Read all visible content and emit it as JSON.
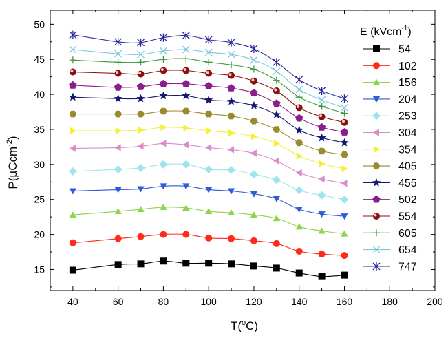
{
  "chart_data": {
    "type": "line",
    "xlabel_main": "T(",
    "xlabel_sup": "o",
    "xlabel_end": "C)",
    "ylabel_main": "P(µCcm",
    "ylabel_sup": "-2",
    "ylabel_end": ")",
    "xlim": [
      30,
      200
    ],
    "ylim": [
      12,
      52
    ],
    "xticks": [
      40,
      60,
      80,
      100,
      120,
      140,
      160,
      180,
      200
    ],
    "yticks": [
      15,
      20,
      25,
      30,
      35,
      40,
      45,
      50
    ],
    "legend_title_main": "E (kVcm",
    "legend_title_sup": "-1",
    "legend_title_end": ")",
    "legend_position": "right",
    "x": [
      40,
      60,
      70,
      80,
      90,
      100,
      110,
      120,
      130,
      140,
      150,
      160
    ],
    "series": [
      {
        "name": "54",
        "marker": "square",
        "color": "#000000",
        "values": [
          14.9,
          15.7,
          15.8,
          16.2,
          15.9,
          15.9,
          15.8,
          15.5,
          15.2,
          14.5,
          14.0,
          14.2
        ]
      },
      {
        "name": "102",
        "marker": "circle",
        "color": "#ff2a1a",
        "values": [
          18.8,
          19.4,
          19.7,
          20.0,
          20.0,
          19.5,
          19.4,
          19.1,
          18.7,
          17.6,
          17.2,
          17.0
        ]
      },
      {
        "name": "156",
        "marker": "triangle-up",
        "color": "#8cd44a",
        "values": [
          22.8,
          23.3,
          23.6,
          23.9,
          23.8,
          23.3,
          23.1,
          22.8,
          22.3,
          21.1,
          20.5,
          20.1
        ]
      },
      {
        "name": "204",
        "marker": "triangle-down",
        "color": "#2e5bd6",
        "values": [
          26.2,
          26.4,
          26.5,
          26.9,
          26.9,
          26.4,
          26.2,
          25.8,
          25.1,
          23.6,
          22.9,
          22.6
        ]
      },
      {
        "name": "253",
        "marker": "diamond",
        "color": "#9fe3ee",
        "values": [
          29.0,
          29.3,
          29.5,
          30.0,
          30.0,
          29.3,
          29.2,
          28.6,
          27.8,
          26.3,
          25.6,
          25.0
        ]
      },
      {
        "name": "304",
        "marker": "triangle-left",
        "color": "#d98cc8",
        "values": [
          32.3,
          32.4,
          32.6,
          33.0,
          32.8,
          32.4,
          32.1,
          31.6,
          30.5,
          28.8,
          27.9,
          27.3
        ]
      },
      {
        "name": "354",
        "marker": "triangle-right",
        "color": "#f2f03a",
        "values": [
          34.8,
          34.8,
          34.9,
          35.3,
          35.2,
          34.8,
          34.5,
          34.0,
          33.0,
          31.2,
          30.1,
          29.4
        ]
      },
      {
        "name": "405",
        "marker": "hexagon",
        "color": "#9a8a2e",
        "values": [
          37.2,
          37.2,
          37.2,
          37.6,
          37.6,
          37.2,
          36.9,
          36.2,
          35.0,
          33.1,
          31.9,
          31.4
        ]
      },
      {
        "name": "455",
        "marker": "star",
        "color": "#15186e",
        "values": [
          39.6,
          39.4,
          39.4,
          39.8,
          39.8,
          39.2,
          39.0,
          38.4,
          37.1,
          34.9,
          33.8,
          33.1
        ]
      },
      {
        "name": "502",
        "marker": "pentagon",
        "color": "#8a1e8a",
        "values": [
          41.3,
          41.0,
          41.1,
          41.5,
          41.5,
          41.2,
          40.9,
          40.2,
          38.7,
          36.6,
          35.3,
          34.6
        ]
      },
      {
        "name": "554",
        "marker": "circle-ball",
        "color": "#8a1010",
        "values": [
          43.2,
          43.0,
          42.9,
          43.4,
          43.4,
          43.0,
          42.7,
          41.9,
          40.5,
          38.1,
          36.8,
          36.0
        ]
      },
      {
        "name": "605",
        "marker": "plus",
        "color": "#3e9a3e",
        "values": [
          44.9,
          44.6,
          44.6,
          45.0,
          45.1,
          44.6,
          44.2,
          43.6,
          42.0,
          39.6,
          38.3,
          37.3
        ]
      },
      {
        "name": "654",
        "marker": "x",
        "color": "#7fc8dc",
        "values": [
          46.4,
          45.8,
          45.7,
          46.2,
          46.4,
          46.0,
          45.7,
          44.9,
          43.3,
          40.7,
          39.2,
          38.1
        ]
      },
      {
        "name": "747",
        "marker": "asterisk",
        "color": "#2a2aa0",
        "values": [
          48.5,
          47.5,
          47.4,
          48.1,
          48.4,
          47.8,
          47.4,
          46.5,
          44.6,
          42.1,
          40.5,
          39.4
        ]
      }
    ]
  }
}
